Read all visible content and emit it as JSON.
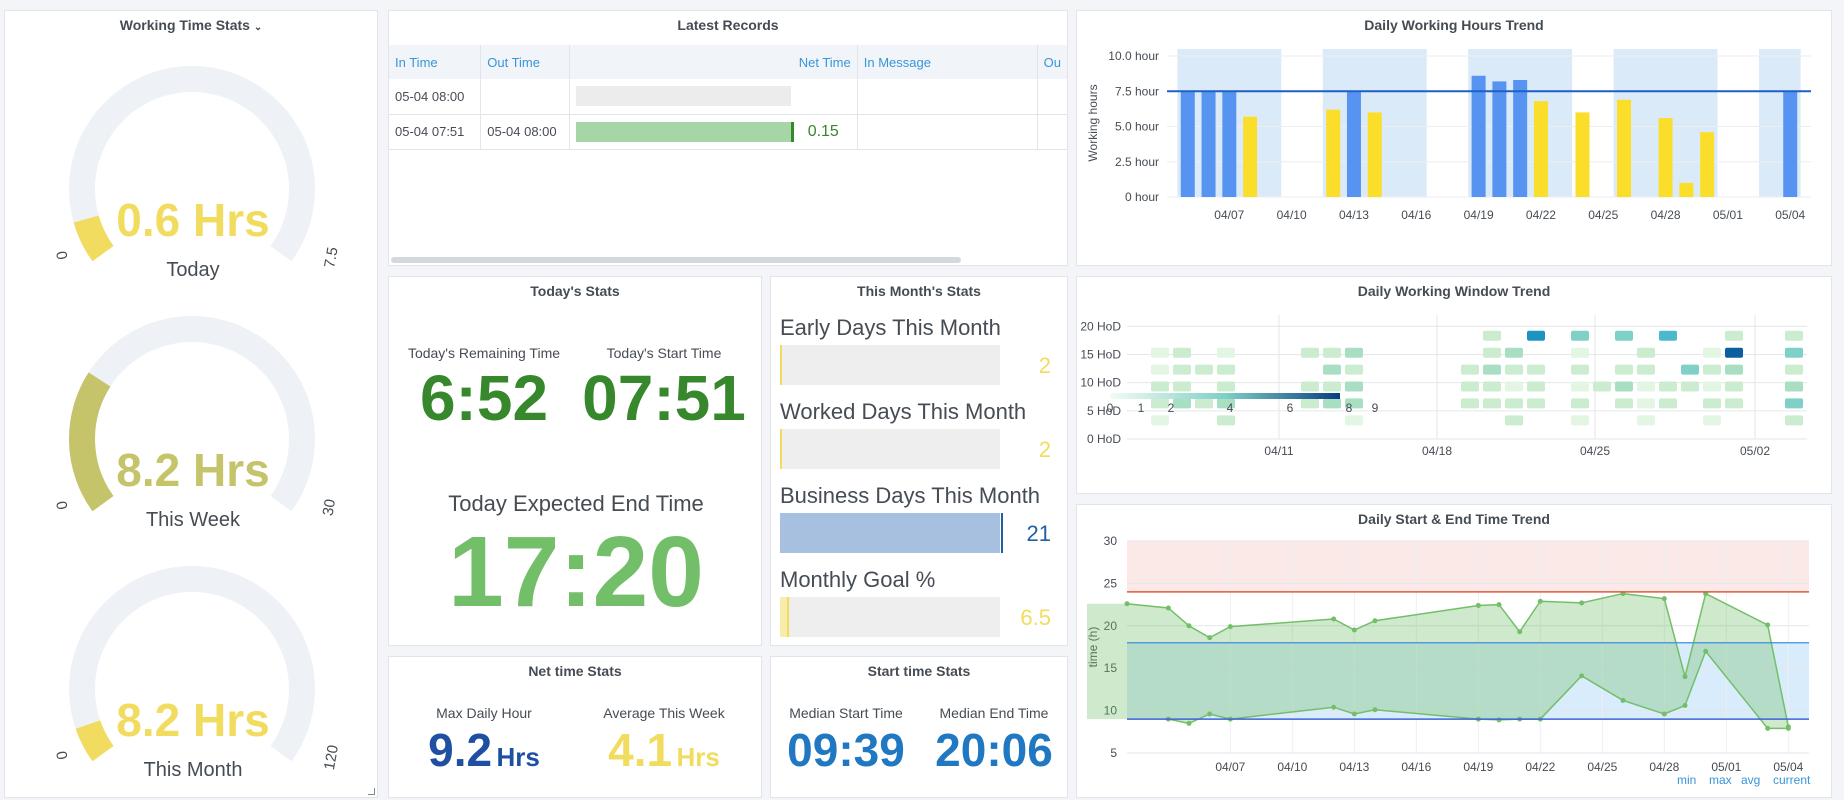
{
  "gauges": {
    "title": "Working Time Stats",
    "items": [
      {
        "value": "0.6 Hrs",
        "caption": "Today",
        "min": "0",
        "max": "7.5",
        "fraction": 0.08,
        "color": "#f2dc5f"
      },
      {
        "value": "8.2 Hrs",
        "caption": "This Week",
        "min": "0",
        "max": "30",
        "fraction": 0.273,
        "color": "#c5c46b"
      },
      {
        "value": "8.2 Hrs",
        "caption": "This Month",
        "min": "0",
        "max": "120",
        "fraction": 0.068,
        "color": "#f2dc5f"
      }
    ]
  },
  "records": {
    "title": "Latest Records",
    "columns": [
      "In Time",
      "Out Time",
      "Net Time",
      "In Message",
      "Ou"
    ],
    "rows": [
      {
        "in": "05-04 08:00",
        "out": "",
        "net": "",
        "fill": 0
      },
      {
        "in": "05-04 07:51",
        "out": "05-04 08:00",
        "net": "0.15",
        "fill": 1
      }
    ]
  },
  "hours_trend": {
    "title": "Daily Working Hours Trend",
    "ylabel": "Working hours",
    "yticks": [
      "0 hour",
      "2.5 hour",
      "5.0 hour",
      "7.5 hour",
      "10.0 hour"
    ],
    "xticks": [
      "04/07",
      "04/10",
      "04/13",
      "04/16",
      "04/19",
      "04/22",
      "04/25",
      "04/28",
      "05/01",
      "05/04"
    ],
    "target": 7.5
  },
  "today": {
    "title": "Today's Stats",
    "remaining_label": "Today's Remaining Time",
    "remaining": "6:52",
    "start_label": "Today's Start Time",
    "start": "07:51",
    "end_label": "Today Expected End Time",
    "end": "17:20"
  },
  "month": {
    "title": "This Month's Stats",
    "items": [
      {
        "label": "Early Days This Month",
        "value": "2",
        "fill": 0.0,
        "color": "#f2dc5f"
      },
      {
        "label": "Worked Days This Month",
        "value": "2",
        "fill": 0.0,
        "color": "#f2dc5f"
      },
      {
        "label": "Business Days This Month",
        "value": "21",
        "fill": 1.0,
        "color": "#1f5fa6"
      },
      {
        "label": "Monthly Goal %",
        "value": "6.5",
        "fill": 0.03,
        "color": "#f2dc5f"
      }
    ]
  },
  "window": {
    "title": "Daily Working Window Trend",
    "yticks": [
      "0 HoD",
      "5 HoD",
      "10 HoD",
      "15 HoD",
      "20 HoD"
    ],
    "xticks": [
      "04/11",
      "04/18",
      "04/25",
      "05/02"
    ],
    "legend": [
      "0",
      "1",
      "2",
      "4",
      "6",
      "8",
      "9"
    ]
  },
  "net": {
    "title": "Net time Stats",
    "max_label": "Max Daily Hour",
    "max_value": "9.2",
    "max_unit": "Hrs",
    "avg_label": "Average This Week",
    "avg_value": "4.1",
    "avg_unit": "Hrs"
  },
  "start_stats": {
    "title": "Start time Stats",
    "median_start_label": "Median Start Time",
    "median_start": "09:39",
    "median_end_label": "Median End Time",
    "median_end": "20:06"
  },
  "start_end": {
    "title": "Daily Start & End Time Trend",
    "ylabel": "time (h)",
    "yticks": [
      "5",
      "10",
      "15",
      "20",
      "25",
      "30"
    ],
    "xticks": [
      "04/07",
      "04/10",
      "04/13",
      "04/16",
      "04/19",
      "04/22",
      "04/25",
      "04/28",
      "05/01",
      "05/04"
    ],
    "legend": [
      "min",
      "max",
      "avg",
      "current"
    ]
  },
  "chart_data": [
    {
      "type": "bar",
      "title": "Daily Working Hours Trend",
      "ylabel": "Working hours",
      "ylim": [
        0,
        10.5
      ],
      "target_line": 7.5,
      "series": [
        {
          "values": [
            {
              "x": "04/05",
              "y": 7.5,
              "color": "#5794f2"
            },
            {
              "x": "04/06",
              "y": 7.5,
              "color": "#5794f2"
            },
            {
              "x": "04/07",
              "y": 7.5,
              "color": "#5794f2"
            },
            {
              "x": "04/08",
              "y": 5.7,
              "color": "#fade2a"
            },
            {
              "x": "04/12",
              "y": 6.2,
              "color": "#fade2a"
            },
            {
              "x": "04/13",
              "y": 7.5,
              "color": "#5794f2"
            },
            {
              "x": "04/14",
              "y": 6.0,
              "color": "#fade2a"
            },
            {
              "x": "04/19",
              "y": 8.6,
              "color": "#5794f2"
            },
            {
              "x": "04/20",
              "y": 8.2,
              "color": "#5794f2"
            },
            {
              "x": "04/21",
              "y": 8.3,
              "color": "#5794f2"
            },
            {
              "x": "04/22",
              "y": 6.8,
              "color": "#fade2a"
            },
            {
              "x": "04/24",
              "y": 6.0,
              "color": "#fade2a"
            },
            {
              "x": "04/26",
              "y": 6.9,
              "color": "#fade2a"
            },
            {
              "x": "04/28",
              "y": 5.6,
              "color": "#fade2a"
            },
            {
              "x": "04/29",
              "y": 1.0,
              "color": "#fade2a"
            },
            {
              "x": "04/30",
              "y": 4.6,
              "color": "#fade2a"
            },
            {
              "x": "05/04",
              "y": 7.5,
              "color": "#5794f2"
            }
          ]
        }
      ]
    },
    {
      "type": "heatmap",
      "title": "Daily Working Window Trend",
      "ylabel": "HoD",
      "ylim": [
        0,
        22
      ]
    },
    {
      "type": "area",
      "title": "Daily Start & End Time Trend",
      "ylabel": "time (h)",
      "ylim": [
        5,
        30
      ],
      "reference_lines": [
        24,
        18,
        9
      ],
      "series": [
        {
          "values": [
            {
              "x": "04/02",
              "y": 22.6
            },
            {
              "x": "04/04",
              "y": 22.1
            },
            {
              "x": "04/05",
              "y": 20.0
            },
            {
              "x": "04/06",
              "y": 18.6
            },
            {
              "x": "04/07",
              "y": 19.9
            },
            {
              "x": "04/12",
              "y": 20.8
            },
            {
              "x": "04/13",
              "y": 19.5
            },
            {
              "x": "04/14",
              "y": 20.6
            },
            {
              "x": "04/19",
              "y": 22.4
            },
            {
              "x": "04/20",
              "y": 22.5
            },
            {
              "x": "04/21",
              "y": 19.3
            },
            {
              "x": "04/22",
              "y": 22.9
            },
            {
              "x": "04/24",
              "y": 22.7
            },
            {
              "x": "04/26",
              "y": 23.8
            },
            {
              "x": "04/28",
              "y": 23.2
            },
            {
              "x": "04/29",
              "y": 14.0
            },
            {
              "x": "04/30",
              "y": 23.8
            },
            {
              "x": "05/03",
              "y": 20.1
            },
            {
              "x": "05/04",
              "y": 8.1
            }
          ]
        },
        {
          "values": [
            {
              "x": "04/04",
              "y": 9.0
            },
            {
              "x": "04/05",
              "y": 8.5
            },
            {
              "x": "04/06",
              "y": 9.6
            },
            {
              "x": "04/07",
              "y": 9.0
            },
            {
              "x": "04/12",
              "y": 10.4
            },
            {
              "x": "04/13",
              "y": 9.6
            },
            {
              "x": "04/14",
              "y": 10.1
            },
            {
              "x": "04/19",
              "y": 9.0
            },
            {
              "x": "04/20",
              "y": 8.9
            },
            {
              "x": "04/21",
              "y": 9.0
            },
            {
              "x": "04/22",
              "y": 9.0
            },
            {
              "x": "04/24",
              "y": 14.1
            },
            {
              "x": "04/26",
              "y": 11.2
            },
            {
              "x": "04/28",
              "y": 9.6
            },
            {
              "x": "04/29",
              "y": 10.6
            },
            {
              "x": "04/30",
              "y": 17.0
            },
            {
              "x": "05/03",
              "y": 7.9
            },
            {
              "x": "05/04",
              "y": 7.9
            }
          ]
        }
      ]
    }
  ]
}
